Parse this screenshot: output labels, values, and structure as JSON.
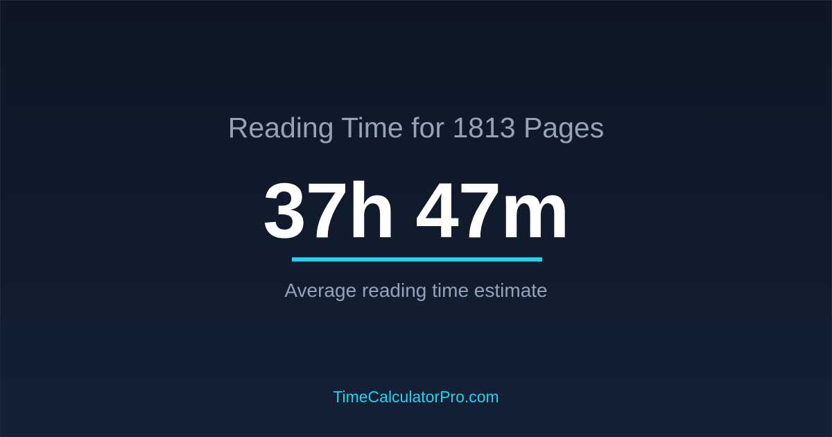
{
  "title": "Reading Time for 1813 Pages",
  "result": "37h 47m",
  "subtitle": "Average reading time estimate",
  "site": "TimeCalculatorPro.com",
  "colors": {
    "accent": "#22d3ee",
    "muted_text": "#94a3b8",
    "background": "#0f172a"
  }
}
